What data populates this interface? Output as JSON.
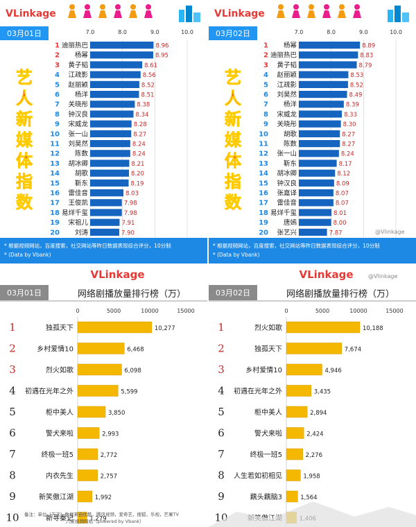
{
  "brand": "VLinkage",
  "watermark": "@Vlinkage",
  "top_panels": [
    {
      "date": "03月01日",
      "vertical_title": [
        "艺",
        "人",
        "新",
        "媒",
        "体",
        "指",
        "数"
      ],
      "axis_ticks": [
        "7.0",
        "8.0",
        "9.0",
        "10.0"
      ],
      "footnote_line1": "* 根据视频网站，百度搜索，社交网站等昨日数据表现综合评分，10分制",
      "footnote_line2": "* (Data by Vbank)"
    },
    {
      "date": "03月02日",
      "vertical_title": [
        "艺",
        "人",
        "新",
        "媒",
        "体",
        "指",
        "数"
      ],
      "axis_ticks": [
        "7.0",
        "8.0",
        "9.0",
        "10.0"
      ],
      "footnote_line1": "* 根据视频网站，百度搜索，社交网站等昨日数据表现综合评分，10分制",
      "footnote_line2": "* (Data by Vbank)"
    }
  ],
  "bottom_panels": [
    {
      "date": "03月01日",
      "title": "网络剧播放量排行榜（万）",
      "axis_ticks": [
        "0",
        "5000",
        "10000",
        "15000"
      ],
      "footnote_line1": "备注：单位（万次）数据来自优酷，腾讯视频，爱奇艺，搜狐，乐视，芒果TV",
      "footnote_line2": "六家视频网站（powered by Vbank）"
    },
    {
      "date": "03月02日",
      "title": "网络剧播放量排行榜（万）",
      "axis_ticks": [
        "0",
        "5000",
        "10000",
        "15000"
      ]
    }
  ],
  "chart_data": [
    {
      "type": "bar",
      "orientation": "horizontal",
      "date": "03月01日",
      "xlim": [
        7.0,
        10.0
      ],
      "color": "#1565c0",
      "ranks": [
        "1",
        "2",
        "3",
        "4",
        "5",
        "6",
        "7",
        "8",
        "9",
        "10",
        "11",
        "12",
        "13",
        "14",
        "15",
        "16",
        "17",
        "18",
        "19",
        "20"
      ],
      "categories": [
        "迪丽热巴",
        "杨幂",
        "黄子韬",
        "江疏影",
        "赵丽颖",
        "杨洋",
        "关晓彤",
        "钟汉良",
        "宋威龙",
        "张一山",
        "刘昊然",
        "陈数",
        "胡冰卿",
        "胡歌",
        "靳东",
        "雷佳音",
        "王俊凯",
        "易烊千玺",
        "宋祖儿",
        "刘涛"
      ],
      "values": [
        8.96,
        8.95,
        8.61,
        8.56,
        8.52,
        8.51,
        8.38,
        8.34,
        8.28,
        8.27,
        8.24,
        8.24,
        8.21,
        8.2,
        8.19,
        8.03,
        7.98,
        7.98,
        7.91,
        7.9
      ],
      "value_labels": [
        "8.96",
        "8.95",
        "8.61",
        "8.56",
        "8.52",
        "8.51",
        "8.38",
        "8.34",
        "8.28",
        "8.27",
        "8.24",
        "8.24",
        "8.21",
        "8.20",
        "8.19",
        "8.03",
        "7.98",
        "7.98",
        "7.91",
        "7.90"
      ]
    },
    {
      "type": "bar",
      "orientation": "horizontal",
      "date": "03月02日",
      "xlim": [
        7.0,
        10.0
      ],
      "color": "#1565c0",
      "ranks": [
        "1",
        "2",
        "3",
        "4",
        "5",
        "6",
        "7",
        "8",
        "9",
        "10",
        "11",
        "12",
        "13",
        "14",
        "15",
        "16",
        "17",
        "18",
        "19",
        "20"
      ],
      "categories": [
        "杨幂",
        "迪丽热巴",
        "黄子韬",
        "赵丽颖",
        "江疏影",
        "刘昊然",
        "杨洋",
        "宋威龙",
        "关晓彤",
        "胡歌",
        "陈数",
        "张一山",
        "靳东",
        "胡冰卿",
        "钟汉良",
        "张嘉译",
        "雷佳音",
        "易烊千玺",
        "唐嫣",
        "张艺兴"
      ],
      "values": [
        8.89,
        8.83,
        8.79,
        8.53,
        8.52,
        8.49,
        8.39,
        8.33,
        8.3,
        8.27,
        8.27,
        8.24,
        8.17,
        8.12,
        8.09,
        8.07,
        8.07,
        8.01,
        8.0,
        7.87
      ],
      "value_labels": [
        "8.89",
        "8.83",
        "8.79",
        "8.53",
        "8.52",
        "8.49",
        "8.39",
        "8.33",
        "8.30",
        "8.27",
        "8.27",
        "8.24",
        "8.17",
        "8.12",
        "8.09",
        "8.07",
        "8.07",
        "8.01",
        "8.00",
        "7.87"
      ]
    },
    {
      "type": "bar",
      "orientation": "horizontal",
      "date": "03月01日",
      "title": "网络剧播放量排行榜（万）",
      "xlim": [
        0,
        15000
      ],
      "color": "#f5b800",
      "ranks": [
        "1",
        "2",
        "3",
        "4",
        "5",
        "6",
        "7",
        "8",
        "9",
        "10"
      ],
      "categories": [
        "独孤天下",
        "乡村爱情10",
        "烈火如歌",
        "初遇在光年之外",
        "柜中美人",
        "警犬来啦",
        "终极一班5",
        "内衣先生",
        "新笑傲江湖",
        "新寻秦记"
      ],
      "values": [
        10277,
        6468,
        6098,
        5599,
        3850,
        2993,
        2772,
        2757,
        1992,
        1279
      ],
      "value_labels": [
        "10,277",
        "6,468",
        "6,098",
        "5,599",
        "3,850",
        "2,993",
        "2,772",
        "2,757",
        "1,992",
        "1,279"
      ]
    },
    {
      "type": "bar",
      "orientation": "horizontal",
      "date": "03月02日",
      "title": "网络剧播放量排行榜（万）",
      "xlim": [
        0,
        15000
      ],
      "color": "#f5b800",
      "ranks": [
        "1",
        "2",
        "3",
        "4",
        "5",
        "6",
        "7",
        "8",
        "9",
        "10"
      ],
      "categories": [
        "烈火如歌",
        "独孤天下",
        "乡村爱情10",
        "初遇在光年之外",
        "柜中美人",
        "警犬来啦",
        "终极一班5",
        "人生若如初相见",
        "藕头藕脑3",
        "新笑傲江湖"
      ],
      "values": [
        10188,
        7674,
        4946,
        3435,
        2894,
        2424,
        2276,
        1958,
        1564,
        1406
      ],
      "value_labels": [
        "10,188",
        "7,674",
        "4,946",
        "3,435",
        "2,894",
        "2,424",
        "2,276",
        "1,958",
        "1,564",
        "1,406"
      ]
    }
  ]
}
